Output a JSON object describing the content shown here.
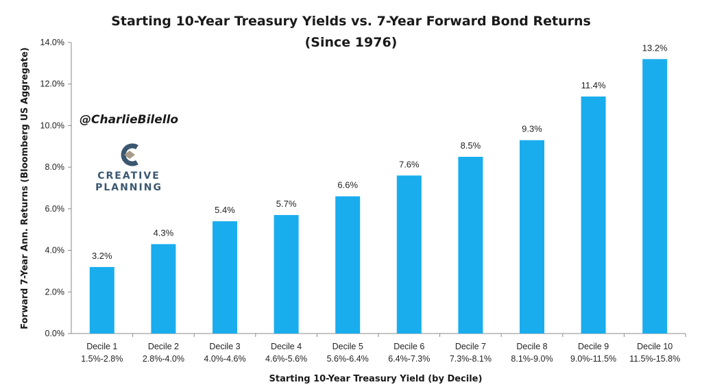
{
  "chart_data": {
    "type": "bar",
    "title": "Starting 10-Year Treasury Yields vs. 7-Year Forward Bond Returns",
    "subtitle": "(Since 1976)",
    "xlabel": "Starting 10-Year Treasury Yield (by Decile)",
    "ylabel": "Forward 7-Year Ann. Returns (Bloomberg US Aggregate)",
    "ylim": [
      0,
      14
    ],
    "yticks": [
      "0.0%",
      "2.0%",
      "4.0%",
      "6.0%",
      "8.0%",
      "10.0%",
      "12.0%",
      "14.0%"
    ],
    "categories": [
      "Decile 1",
      "Decile 2",
      "Decile 3",
      "Decile 4",
      "Decile 5",
      "Decile 6",
      "Decile 7",
      "Decile 8",
      "Decile 9",
      "Decile 10"
    ],
    "category_ranges": [
      "1.5%-2.8%",
      "2.8%-4.0%",
      "4.0%-4.6%",
      "4.6%-5.6%",
      "5.6%-6.4%",
      "6.4%-7.3%",
      "7.3%-8.1%",
      "8.1%-9.0%",
      "9.0%-11.5%",
      "11.5%-15.8%"
    ],
    "values": [
      3.2,
      4.3,
      5.4,
      5.7,
      6.6,
      7.6,
      8.5,
      9.3,
      11.4,
      13.2
    ],
    "value_labels": [
      "3.2%",
      "4.3%",
      "5.4%",
      "5.7%",
      "6.6%",
      "7.6%",
      "8.5%",
      "9.3%",
      "11.4%",
      "13.2%"
    ],
    "grid": false,
    "legend": "none",
    "bar_color": "#19adee"
  },
  "annotations": {
    "handle": "@CharlieBilello",
    "logo_line1": "CREATIVE",
    "logo_line2": "PLANNING"
  },
  "colors": {
    "logo_dark": "#3b5770",
    "logo_accent": "#a89a85"
  }
}
